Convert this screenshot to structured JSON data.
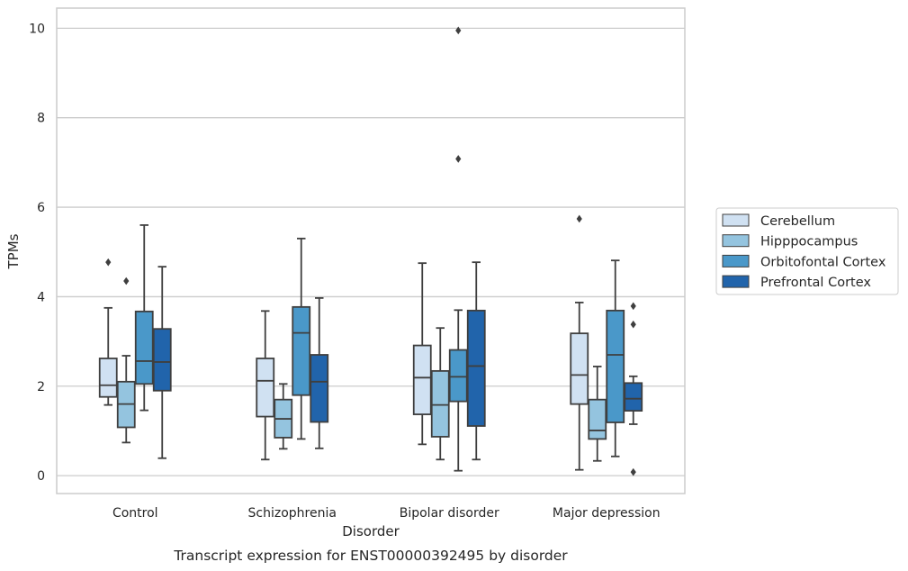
{
  "chart_data": {
    "type": "box",
    "xlabel": "Disorder",
    "ylabel": "TPMs",
    "caption": "Transcript expression for ENST00000392495 by disorder",
    "ylim": [
      -0.4,
      10.45
    ],
    "yticks": [
      0,
      2,
      4,
      6,
      8,
      10
    ],
    "grid": "horizontal",
    "legend_position": "right",
    "categories": [
      "Control",
      "Schizophrenia",
      "Bipolar disorder",
      "Major depression"
    ],
    "series": [
      {
        "name": "Cerebellum",
        "color": "#d0e1f2",
        "boxes": [
          {
            "whisker_low": 1.58,
            "q1": 1.76,
            "median": 2.02,
            "q3": 2.62,
            "whisker_high": 3.75,
            "outliers": [
              4.77
            ]
          },
          {
            "whisker_low": 0.36,
            "q1": 1.32,
            "median": 2.12,
            "q3": 2.62,
            "whisker_high": 3.68,
            "outliers": []
          },
          {
            "whisker_low": 0.7,
            "q1": 1.37,
            "median": 2.19,
            "q3": 2.91,
            "whisker_high": 4.75,
            "outliers": []
          },
          {
            "whisker_low": 0.13,
            "q1": 1.6,
            "median": 2.25,
            "q3": 3.18,
            "whisker_high": 3.87,
            "outliers": [
              5.74
            ]
          }
        ]
      },
      {
        "name": "Hipppocampus",
        "color": "#94c4df",
        "boxes": [
          {
            "whisker_low": 0.74,
            "q1": 1.08,
            "median": 1.6,
            "q3": 2.1,
            "whisker_high": 2.68,
            "outliers": [
              4.35
            ]
          },
          {
            "whisker_low": 0.6,
            "q1": 0.85,
            "median": 1.27,
            "q3": 1.7,
            "whisker_high": 2.05,
            "outliers": []
          },
          {
            "whisker_low": 0.36,
            "q1": 0.87,
            "median": 1.58,
            "q3": 2.34,
            "whisker_high": 3.3,
            "outliers": []
          },
          {
            "whisker_low": 0.33,
            "q1": 0.82,
            "median": 1.01,
            "q3": 1.7,
            "whisker_high": 2.44,
            "outliers": []
          }
        ]
      },
      {
        "name": "Orbitofontal Cortex",
        "color": "#4a98c9",
        "boxes": [
          {
            "whisker_low": 1.46,
            "q1": 2.05,
            "median": 2.56,
            "q3": 3.67,
            "whisker_high": 5.6,
            "outliers": []
          },
          {
            "whisker_low": 0.82,
            "q1": 1.8,
            "median": 3.19,
            "q3": 3.77,
            "whisker_high": 5.3,
            "outliers": []
          },
          {
            "whisker_low": 0.11,
            "q1": 1.66,
            "median": 2.21,
            "q3": 2.81,
            "whisker_high": 3.7,
            "outliers": [
              7.08,
              9.95
            ]
          },
          {
            "whisker_low": 0.43,
            "q1": 1.19,
            "median": 2.7,
            "q3": 3.69,
            "whisker_high": 4.81,
            "outliers": []
          }
        ]
      },
      {
        "name": "Prefrontal Cortex",
        "color": "#2164ab",
        "boxes": [
          {
            "whisker_low": 0.39,
            "q1": 1.9,
            "median": 2.54,
            "q3": 3.28,
            "whisker_high": 4.67,
            "outliers": []
          },
          {
            "whisker_low": 0.61,
            "q1": 1.2,
            "median": 2.1,
            "q3": 2.7,
            "whisker_high": 3.97,
            "outliers": []
          },
          {
            "whisker_low": 0.36,
            "q1": 1.11,
            "median": 2.45,
            "q3": 3.69,
            "whisker_high": 4.77,
            "outliers": []
          },
          {
            "whisker_low": 1.15,
            "q1": 1.45,
            "median": 1.72,
            "q3": 2.07,
            "whisker_high": 2.22,
            "outliers": [
              0.08,
              3.38,
              3.79
            ]
          }
        ]
      }
    ]
  }
}
